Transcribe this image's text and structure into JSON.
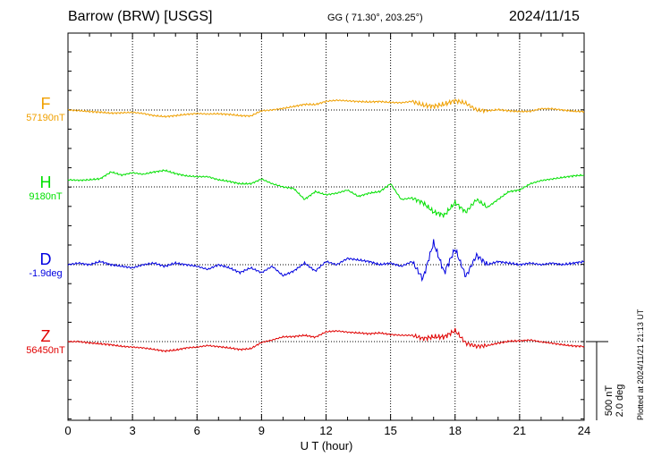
{
  "header": {
    "title": "Barrow (BRW)  [USGS]",
    "coords": "GG ( 71.30°, 203.25°)",
    "date": "2024/11/15"
  },
  "footer_note": "Plotted at 2024/11/21 21:13 UT",
  "components": [
    {
      "id": "F",
      "label": "F",
      "baseline": "57190nT",
      "color": "#f0a000"
    },
    {
      "id": "H",
      "label": "H",
      "baseline": "9180nT",
      "color": "#00e000"
    },
    {
      "id": "D",
      "label": "D",
      "baseline": "-1.9deg",
      "color": "#0000e0"
    },
    {
      "id": "Z",
      "label": "Z",
      "baseline": "56450nT",
      "color": "#e00000"
    }
  ],
  "chart_data": {
    "type": "line",
    "x_ticks": [
      "0",
      "3",
      "6",
      "9",
      "12",
      "15",
      "18",
      "21",
      "24"
    ],
    "xlabel": "U T (hour)",
    "xlim": [
      0,
      24
    ],
    "scale_bar": [
      "500 nT",
      "2.0 deg"
    ],
    "grid": true,
    "series": [
      {
        "name": "F",
        "unit": "nT",
        "color": "#f0a000",
        "x": [
          0,
          0.5,
          1,
          1.5,
          2,
          2.5,
          3,
          3.5,
          4,
          4.5,
          5,
          5.5,
          6,
          6.5,
          7,
          7.5,
          8,
          8.5,
          9,
          9.5,
          10,
          10.5,
          11,
          11.5,
          12,
          12.5,
          13,
          13.5,
          14,
          14.5,
          15,
          15.5,
          16,
          16.5,
          17,
          17.5,
          18,
          18.5,
          19,
          19.5,
          20,
          20.5,
          21,
          21.5,
          22,
          22.5,
          23,
          23.5,
          24
        ],
        "y": [
          57190,
          57186,
          57180,
          57176,
          57170,
          57172,
          57175,
          57168,
          57154,
          57148,
          57154,
          57162,
          57168,
          57164,
          57166,
          57162,
          57154,
          57152,
          57185,
          57190,
          57200,
          57212,
          57226,
          57224,
          57245,
          57252,
          57248,
          57244,
          57241,
          57244,
          57238,
          57236,
          57245,
          57220,
          57214,
          57226,
          57250,
          57232,
          57190,
          57185,
          57192,
          57185,
          57180,
          57182,
          57198,
          57198,
          57190,
          57182,
          57180
        ]
      },
      {
        "name": "H",
        "unit": "nT",
        "color": "#00e000",
        "x": [
          0,
          0.5,
          1,
          1.5,
          2,
          2.5,
          3,
          3.5,
          4,
          4.5,
          5,
          5.5,
          6,
          6.5,
          7,
          7.5,
          8,
          8.5,
          9,
          9.5,
          10,
          10.5,
          11,
          11.5,
          12,
          12.5,
          13,
          13.5,
          14,
          14.5,
          15,
          15.5,
          16,
          16.5,
          17,
          17.5,
          18,
          18.5,
          19,
          19.5,
          20,
          20.5,
          21,
          21.5,
          22,
          22.5,
          23,
          23.5,
          24
        ],
        "y": [
          9225,
          9222,
          9225,
          9232,
          9275,
          9255,
          9270,
          9260,
          9275,
          9285,
          9265,
          9250,
          9245,
          9245,
          9225,
          9215,
          9200,
          9200,
          9230,
          9200,
          9180,
          9170,
          9100,
          9150,
          9130,
          9140,
          9160,
          9120,
          9140,
          9150,
          9200,
          9100,
          9110,
          9080,
          9020,
          9000,
          9080,
          9020,
          9100,
          9050,
          9100,
          9150,
          9160,
          9200,
          9220,
          9230,
          9240,
          9250,
          9255
        ]
      },
      {
        "name": "D",
        "unit": "deg",
        "color": "#0000e0",
        "x": [
          0,
          0.5,
          1,
          1.5,
          2,
          2.5,
          3,
          3.5,
          4,
          4.5,
          5,
          5.5,
          6,
          6.5,
          7,
          7.5,
          8,
          8.5,
          9,
          9.5,
          10,
          10.5,
          11,
          11.5,
          12,
          12.5,
          13,
          13.5,
          14,
          14.5,
          15,
          15.5,
          16,
          16.5,
          17,
          17.5,
          18,
          18.5,
          19,
          19.5,
          20,
          20.5,
          21,
          21.5,
          22,
          22.5,
          23,
          23.5,
          24
        ],
        "y": [
          -1.9,
          -1.86,
          -1.9,
          -1.82,
          -1.9,
          -1.94,
          -1.98,
          -1.9,
          -1.86,
          -1.94,
          -1.86,
          -1.9,
          -1.94,
          -2.02,
          -1.9,
          -1.98,
          -2.1,
          -1.98,
          -2.1,
          -1.94,
          -2.18,
          -2.06,
          -1.86,
          -2.06,
          -1.82,
          -1.9,
          -1.74,
          -1.78,
          -1.82,
          -1.9,
          -1.86,
          -1.94,
          -1.82,
          -2.26,
          -1.34,
          -2.1,
          -1.5,
          -2.2,
          -1.66,
          -1.9,
          -1.82,
          -1.86,
          -1.9,
          -1.86,
          -1.9,
          -1.86,
          -1.9,
          -1.86,
          -1.82
        ]
      },
      {
        "name": "Z",
        "unit": "nT",
        "color": "#e00000",
        "x": [
          0,
          0.5,
          1,
          1.5,
          2,
          2.5,
          3,
          3.5,
          4,
          4.5,
          5,
          5.5,
          6,
          6.5,
          7,
          7.5,
          8,
          8.5,
          9,
          9.5,
          10,
          10.5,
          11,
          11.5,
          12,
          12.5,
          13,
          13.5,
          14,
          14.5,
          15,
          15.5,
          16,
          16.5,
          17,
          17.5,
          18,
          18.5,
          19,
          19.5,
          20,
          20.5,
          21,
          21.5,
          22,
          22.5,
          23,
          23.5,
          24
        ],
        "y": [
          56450,
          56450,
          56442,
          56436,
          56430,
          56420,
          56415,
          56410,
          56400,
          56390,
          56396,
          56410,
          56415,
          56425,
          56418,
          56410,
          56400,
          56405,
          56445,
          56460,
          56480,
          56482,
          56490,
          56478,
          56512,
          56518,
          56510,
          56505,
          56500,
          56505,
          56495,
          56490,
          56490,
          56470,
          56480,
          56480,
          56520,
          56440,
          56420,
          56425,
          56440,
          56452,
          56455,
          56460,
          56448,
          56440,
          56430,
          56422,
          56420
        ]
      }
    ]
  }
}
